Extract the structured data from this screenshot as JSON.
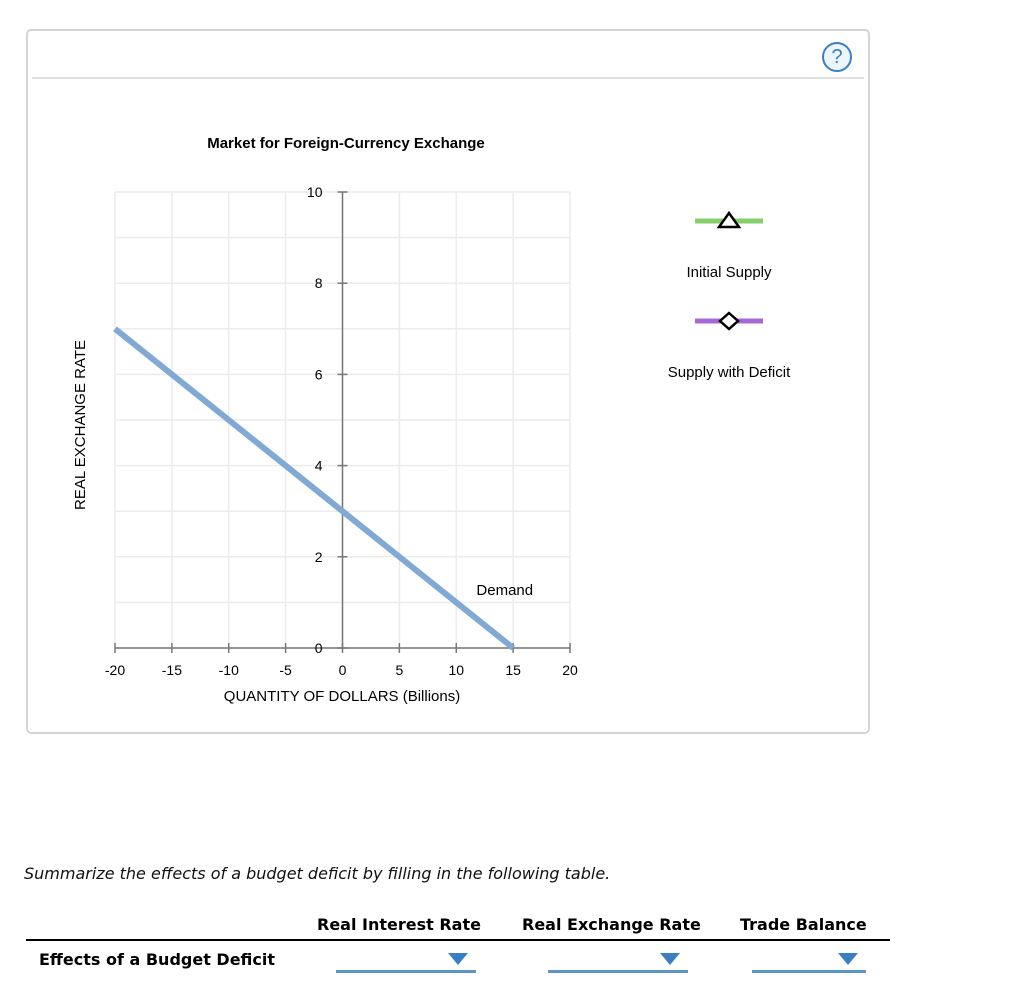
{
  "help_icon": "?",
  "chart_data": {
    "type": "line",
    "title": "Market for Foreign-Currency Exchange",
    "xlabel": "QUANTITY OF DOLLARS (Billions)",
    "ylabel": "REAL EXCHANGE RATE",
    "xlim": [
      -20,
      20
    ],
    "ylim": [
      0,
      10
    ],
    "xticks": [
      -20,
      -15,
      -10,
      -5,
      0,
      5,
      10,
      15,
      20
    ],
    "yticks": [
      0,
      2,
      4,
      6,
      8,
      10
    ],
    "grid": true,
    "series": [
      {
        "name": "Demand",
        "x": [
          -20,
          15
        ],
        "y": [
          7,
          0
        ],
        "color": "#80a9d4"
      }
    ],
    "legend": {
      "placement": "right",
      "items": [
        {
          "label": "Initial Supply",
          "color": "#86d06c",
          "marker": "triangle"
        },
        {
          "label": "Supply with Deficit",
          "color": "#a868d4",
          "marker": "diamond"
        }
      ]
    }
  },
  "prompt": "Summarize the effects of a budget deficit by filling in the following table.",
  "table": {
    "headers": [
      "Real Interest Rate",
      "Real Exchange Rate",
      "Trade Balance"
    ],
    "row_label": "Effects of a Budget Deficit",
    "values": [
      "",
      "",
      ""
    ]
  }
}
